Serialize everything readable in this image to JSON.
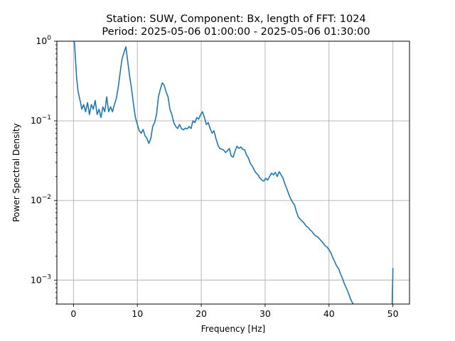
{
  "chart_data": {
    "type": "line",
    "title_line1": "Station: SUW, Component: Bx, length of FFT: 1024",
    "title_line2": "Period: 2025-05-06 01:00:00 - 2025-05-06 01:30:00",
    "xlabel": "Frequency [Hz]",
    "ylabel": "Power Spectral Density",
    "xlim": [
      -2.6,
      52.6
    ],
    "ylim": [
      0.0005,
      1
    ],
    "yscale": "log",
    "grid": true,
    "x_ticks": [
      0,
      10,
      20,
      30,
      40,
      50
    ],
    "x_tick_labels": [
      "0",
      "10",
      "20",
      "30",
      "40",
      "50"
    ],
    "y_ticks": [
      1,
      0.1,
      0.01,
      0.001
    ],
    "y_tick_labels": [
      {
        "base": "10",
        "exp": "0"
      },
      {
        "base": "10",
        "exp": "−1"
      },
      {
        "base": "10",
        "exp": "−2"
      },
      {
        "base": "10",
        "exp": "−3"
      }
    ],
    "line_color": "#1f77b4",
    "series": [
      {
        "x": [
          0.05,
          0.15,
          0.3,
          0.5,
          0.7,
          0.9,
          1.1,
          1.3,
          1.6,
          1.9,
          2.2,
          2.5,
          2.8,
          3.1,
          3.4,
          3.7,
          4.0,
          4.3,
          4.6,
          4.9,
          5.2,
          5.5,
          5.8,
          6.1,
          6.4,
          6.7,
          7.0,
          7.3,
          7.6,
          7.9,
          8.2,
          8.5,
          8.8,
          9.1,
          9.4,
          9.7,
          10.0,
          10.3,
          10.6,
          10.9,
          11.2,
          11.5,
          11.8,
          12.1,
          12.4,
          12.7,
          13.0,
          13.3,
          13.6,
          13.9,
          14.2,
          14.5,
          14.8,
          15.1,
          15.4,
          15.7,
          16.0,
          16.3,
          16.6,
          16.9,
          17.2,
          17.5,
          17.8,
          18.1,
          18.4,
          18.7,
          19.0,
          19.3,
          19.6,
          19.9,
          20.2,
          20.5,
          20.8,
          21.1,
          21.4,
          21.7,
          22.0,
          22.3,
          22.6,
          22.9,
          23.2,
          23.5,
          23.8,
          24.1,
          24.4,
          24.7,
          25.0,
          25.3,
          25.6,
          25.9,
          26.2,
          26.5,
          26.8,
          27.1,
          27.4,
          27.7,
          28.0,
          28.3,
          28.6,
          28.9,
          29.2,
          29.5,
          29.8,
          30.1,
          30.4,
          30.7,
          31.0,
          31.3,
          31.6,
          31.9,
          32.2,
          32.5,
          32.8,
          33.1,
          33.4,
          33.7,
          34.0,
          34.3,
          34.6,
          34.9,
          35.2,
          35.5,
          35.8,
          36.1,
          36.4,
          36.7,
          37.0,
          37.3,
          37.6,
          37.9,
          38.2,
          38.5,
          38.8,
          39.1,
          39.4,
          39.7,
          40.0,
          40.3,
          40.6,
          40.9,
          41.2,
          41.5,
          41.8,
          42.1,
          42.4,
          42.7,
          43.0,
          43.3,
          43.6,
          43.8
        ],
        "y": [
          1.0,
          0.95,
          0.62,
          0.34,
          0.24,
          0.2,
          0.17,
          0.14,
          0.16,
          0.13,
          0.17,
          0.12,
          0.16,
          0.14,
          0.18,
          0.12,
          0.14,
          0.11,
          0.15,
          0.13,
          0.2,
          0.13,
          0.15,
          0.13,
          0.16,
          0.19,
          0.26,
          0.4,
          0.6,
          0.72,
          0.85,
          0.55,
          0.36,
          0.25,
          0.16,
          0.11,
          0.09,
          0.075,
          0.07,
          0.078,
          0.065,
          0.06,
          0.052,
          0.06,
          0.085,
          0.095,
          0.12,
          0.2,
          0.25,
          0.3,
          0.28,
          0.23,
          0.2,
          0.14,
          0.12,
          0.095,
          0.085,
          0.08,
          0.09,
          0.08,
          0.077,
          0.081,
          0.079,
          0.085,
          0.08,
          0.1,
          0.095,
          0.11,
          0.105,
          0.12,
          0.13,
          0.11,
          0.09,
          0.095,
          0.08,
          0.07,
          0.075,
          0.06,
          0.05,
          0.045,
          0.044,
          0.043,
          0.04,
          0.042,
          0.045,
          0.036,
          0.035,
          0.042,
          0.048,
          0.045,
          0.047,
          0.044,
          0.043,
          0.037,
          0.034,
          0.029,
          0.027,
          0.024,
          0.022,
          0.021,
          0.019,
          0.018,
          0.0175,
          0.019,
          0.018,
          0.02,
          0.022,
          0.021,
          0.0225,
          0.02,
          0.023,
          0.021,
          0.019,
          0.016,
          0.014,
          0.012,
          0.0105,
          0.0095,
          0.0088,
          0.0072,
          0.0062,
          0.0058,
          0.0055,
          0.0052,
          0.0048,
          0.0046,
          0.0043,
          0.0041,
          0.0038,
          0.0036,
          0.0035,
          0.0033,
          0.0031,
          0.0029,
          0.0027,
          0.0026,
          0.0024,
          0.0022,
          0.0019,
          0.0017,
          0.0015,
          0.0014,
          0.0012,
          0.00105,
          0.0009,
          0.0008,
          0.0007,
          0.0006,
          0.00053,
          0.0005
        ]
      },
      {
        "x": [
          49.88,
          49.9,
          49.92,
          49.94,
          49.96,
          49.98,
          50.0
        ],
        "y": [
          0.0005,
          0.0006,
          0.0007,
          0.0008,
          0.00095,
          0.0011,
          0.0014
        ]
      }
    ]
  }
}
